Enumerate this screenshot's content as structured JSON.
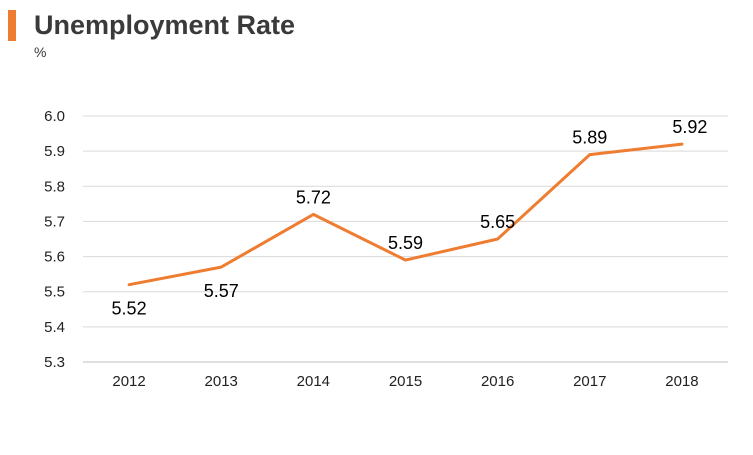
{
  "chart_data": {
    "type": "line",
    "title": "Unemployment Rate",
    "ylabel": "%",
    "xlabel": "",
    "x": [
      "2012",
      "2013",
      "2014",
      "2015",
      "2016",
      "2017",
      "2018"
    ],
    "series": [
      {
        "values": [
          5.52,
          5.57,
          5.72,
          5.59,
          5.65,
          5.89,
          5.92
        ]
      }
    ],
    "data_labels": [
      "5.52",
      "5.57",
      "5.72",
      "5.59",
      "5.65",
      "5.89",
      "5.92"
    ],
    "ylim": [
      5.3,
      6.0
    ],
    "yticks": [
      "5.3",
      "5.4",
      "5.5",
      "5.6",
      "5.7",
      "5.8",
      "5.9",
      "6.0"
    ],
    "grid": true,
    "legend": "none",
    "line_color": "#ee7d31",
    "grid_color": "#d9d9d9"
  }
}
